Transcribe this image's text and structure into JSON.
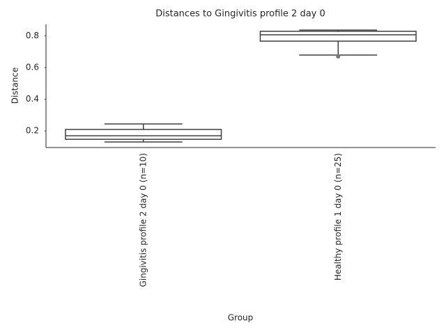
{
  "chart_data": {
    "type": "box",
    "title": "Distances to Gingivitis profile 2 day 0",
    "x_label": "Group",
    "y_label": "Distance",
    "categories": [
      "Gingivitis profile 2 day 0 (n=10)",
      "Healthy profile 1 day 0 (n=25)"
    ],
    "boxes": [
      {
        "min": 0.13,
        "q1": 0.147,
        "median": 0.169,
        "q3": 0.209,
        "max": 0.244,
        "outliers": []
      },
      {
        "min": 0.679,
        "q1": 0.767,
        "median": 0.807,
        "q3": 0.829,
        "max": 0.837,
        "outliers": [
          0.67
        ]
      }
    ],
    "color": "#3f3f3f",
    "ylim": [
      0.095,
      0.873
    ],
    "yticks": [
      {
        "value": 0.2,
        "label": "0.2"
      },
      {
        "value": 0.4,
        "label": "0.4"
      },
      {
        "value": 0.6,
        "label": "0.6"
      },
      {
        "value": 0.8,
        "label": "0.8"
      }
    ]
  }
}
